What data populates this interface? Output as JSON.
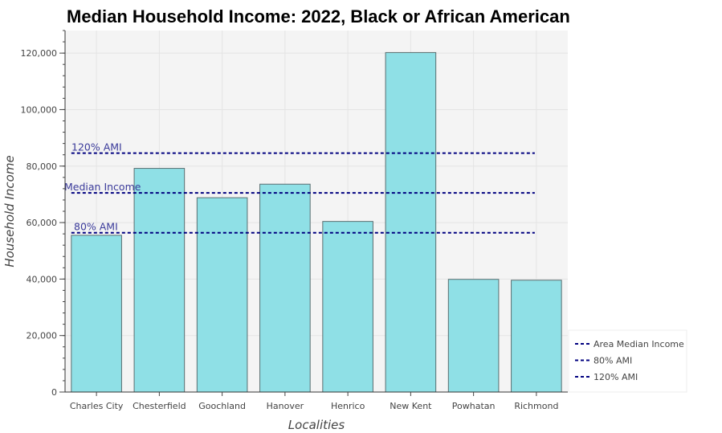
{
  "chart_data": {
    "type": "bar",
    "title": "Median Household Income: 2022, Black or African American",
    "xlabel": "Localities",
    "ylabel": "Household Income",
    "categories": [
      "Charles City",
      "Chesterfield",
      "Goochland",
      "Hanover",
      "Henrico",
      "New Kent",
      "Powhatan",
      "Richmond"
    ],
    "values": [
      55500,
      79200,
      68800,
      73600,
      60400,
      120200,
      39900,
      39600
    ],
    "ylim": [
      0,
      128000
    ],
    "yticks": [
      0,
      20000,
      40000,
      60000,
      80000,
      100000,
      120000
    ],
    "ytick_labels": [
      "0",
      "20,000",
      "40,000",
      "60,000",
      "80,000",
      "100,000",
      "120,000"
    ],
    "grid": true,
    "reference_lines": [
      {
        "name": "Area Median Income",
        "value": 70500,
        "label": "Median Income"
      },
      {
        "name": "80% AMI",
        "value": 56400,
        "label": "80% AMI"
      },
      {
        "name": "120% AMI",
        "value": 84600,
        "label": "120% AMI"
      }
    ],
    "legend": {
      "placement": "bottom-right",
      "entries": [
        "Area Median Income",
        "80% AMI",
        "120% AMI"
      ]
    },
    "colors": {
      "bar_fill": "#8fe0e6",
      "bar_stroke": "#5a6e70",
      "ref_line": "#000080",
      "plot_bg": "#f4f4f4",
      "grid": "#e4e4e4"
    }
  }
}
